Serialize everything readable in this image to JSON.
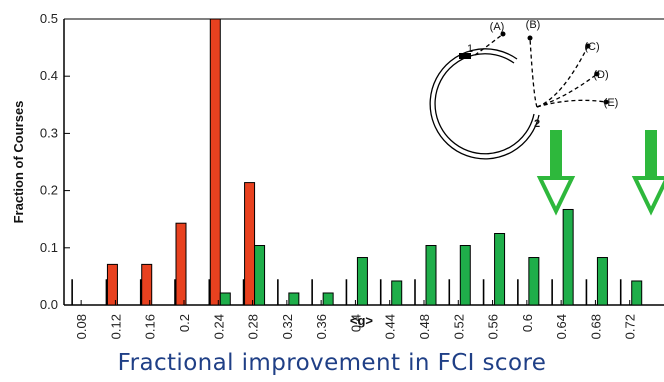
{
  "chart_data": {
    "type": "bar",
    "xlabel": "<g>",
    "ylabel": "Fraction of Courses",
    "caption": "Fractional improvement in FCI score",
    "ylim": [
      0,
      0.5
    ],
    "y_ticks": [
      "0.0",
      "0.1",
      "0.2",
      "0.3",
      "0.4",
      "0.5"
    ],
    "x_ticks": [
      "0.08",
      "0.12",
      "0.16",
      "0.2",
      "0.24",
      "0.28",
      "0.32",
      "0.36",
      "0.4",
      "0.44",
      "0.48",
      "0.52",
      "0.56",
      "0.6",
      "0.64",
      "0.68",
      "0.72"
    ],
    "bin_width": 0.04,
    "colors": {
      "red": "#e8411f",
      "green": "#1fae4a",
      "arrow": "#2eb83c",
      "outline": "#000000"
    },
    "series": [
      {
        "color": "red",
        "bins": [
          0.12,
          0.16,
          0.2,
          0.24,
          0.28
        ],
        "values": [
          0.071,
          0.071,
          0.143,
          0.5,
          0.214
        ]
      },
      {
        "color": "green",
        "bins": [
          0.24,
          0.28,
          0.32,
          0.36,
          0.4,
          0.44,
          0.48,
          0.52,
          0.56,
          0.6,
          0.64,
          0.68,
          0.72
        ],
        "values": [
          0.021,
          0.104,
          0.021,
          0.021,
          0.083,
          0.042,
          0.104,
          0.104,
          0.125,
          0.083,
          0.167,
          0.083,
          0.042
        ]
      }
    ],
    "legend_ticks": [
      0.08,
      0.12,
      0.16,
      0.2,
      0.24,
      0.28,
      0.32,
      0.36,
      0.4,
      0.44,
      0.48,
      0.52,
      0.56,
      0.6,
      0.64,
      0.68,
      0.72
    ],
    "inset": {
      "labels": [
        "(A)",
        "(B)",
        "(C)",
        "(D)",
        "(E)"
      ],
      "point_labels": [
        "1",
        "2"
      ]
    },
    "arrows_count": 2
  }
}
